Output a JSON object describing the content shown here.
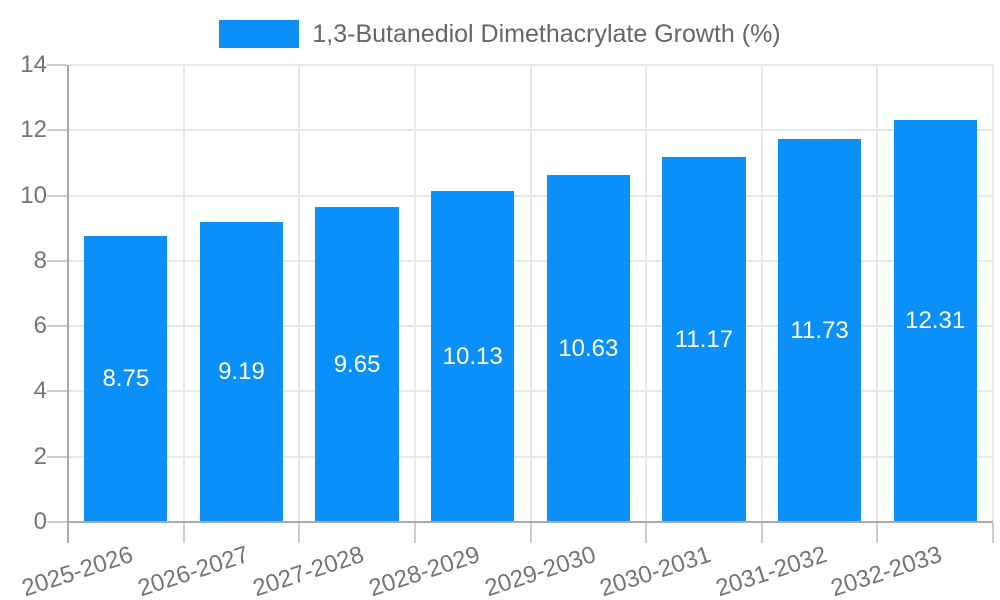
{
  "chart_data": {
    "type": "bar",
    "title": "",
    "legend_label": "1,3-Butanediol Dimethacrylate Growth (%)",
    "legend_position": "top-center",
    "categories": [
      "2025-2026",
      "2026-2027",
      "2027-2028",
      "2028-2029",
      "2029-2030",
      "2030-2031",
      "2031-2032",
      "2032-2033"
    ],
    "values": [
      8.75,
      9.19,
      9.65,
      10.13,
      10.63,
      11.17,
      11.73,
      12.31
    ],
    "value_label_decimals": 2,
    "ylim": [
      0,
      14
    ],
    "yticks": [
      0,
      2,
      4,
      6,
      8,
      10,
      12,
      14
    ],
    "grid": "horizontal-and-vertical",
    "x_label_rotation_deg": -18,
    "colors": {
      "bar": "#0a90f8",
      "bar_label": "#ffffff",
      "axis_text": "#757575",
      "legend_text": "#666666",
      "grid": "#e8e8e8",
      "axis_line": "#a9a9a9",
      "tick": "#cccccc",
      "background": "#ffffff"
    }
  }
}
